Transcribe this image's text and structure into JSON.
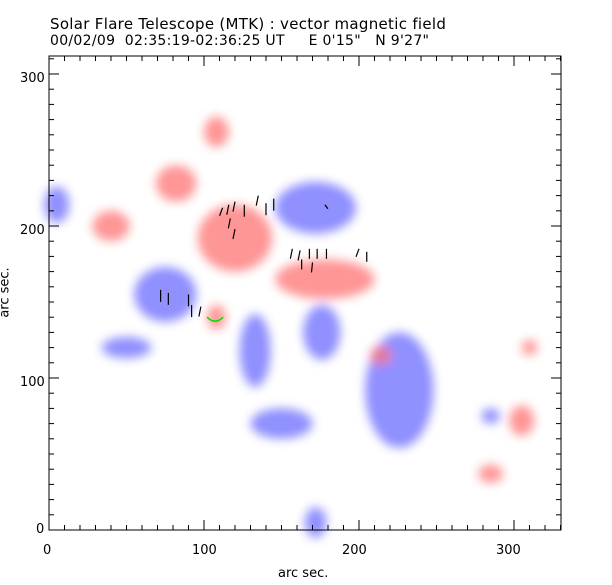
{
  "chart_data": {
    "type": "heatmap",
    "title": "Solar Flare Telescope (MTK) : vector magnetic field",
    "subtitle": "00/02/09  02:35:19-02:36:25 UT     E 0'15\"   N 9'27\"",
    "xlabel": "arc sec.",
    "ylabel": "arc sec.",
    "xlim": [
      0,
      330
    ],
    "ylim": [
      0,
      315
    ],
    "xticks": [
      "0",
      "100",
      "200",
      "300"
    ],
    "yticks": [
      "0",
      "100",
      "200",
      "300"
    ],
    "colors": {
      "positive": "#ff5a5a",
      "negative": "#5a5aff",
      "vectors": "#000000",
      "neutral_line": "#00e000"
    },
    "regions": [
      {
        "polarity": "negative",
        "x": 172,
        "y": 212,
        "rx": 26,
        "ry": 17
      },
      {
        "polarity": "negative",
        "x": 75,
        "y": 155,
        "rx": 20,
        "ry": 18
      },
      {
        "polarity": "negative",
        "x": 226,
        "y": 92,
        "rx": 22,
        "ry": 38
      },
      {
        "polarity": "negative",
        "x": 176,
        "y": 130,
        "rx": 12,
        "ry": 18
      },
      {
        "polarity": "negative",
        "x": 133,
        "y": 118,
        "rx": 10,
        "ry": 24
      },
      {
        "polarity": "negative",
        "x": 5,
        "y": 214,
        "rx": 8,
        "ry": 12
      },
      {
        "polarity": "negative",
        "x": 50,
        "y": 120,
        "rx": 16,
        "ry": 7
      },
      {
        "polarity": "negative",
        "x": 150,
        "y": 70,
        "rx": 20,
        "ry": 10
      },
      {
        "polarity": "negative",
        "x": 285,
        "y": 75,
        "rx": 6,
        "ry": 5
      },
      {
        "polarity": "negative",
        "x": 172,
        "y": 5,
        "rx": 7,
        "ry": 10
      },
      {
        "polarity": "positive",
        "x": 120,
        "y": 192,
        "rx": 24,
        "ry": 22
      },
      {
        "polarity": "positive",
        "x": 178,
        "y": 165,
        "rx": 32,
        "ry": 13
      },
      {
        "polarity": "positive",
        "x": 82,
        "y": 228,
        "rx": 13,
        "ry": 12
      },
      {
        "polarity": "positive",
        "x": 40,
        "y": 200,
        "rx": 12,
        "ry": 10
      },
      {
        "polarity": "positive",
        "x": 108,
        "y": 262,
        "rx": 8,
        "ry": 10
      },
      {
        "polarity": "positive",
        "x": 108,
        "y": 140,
        "rx": 6,
        "ry": 8
      },
      {
        "polarity": "positive",
        "x": 214,
        "y": 115,
        "rx": 7,
        "ry": 6
      },
      {
        "polarity": "positive",
        "x": 305,
        "y": 72,
        "rx": 8,
        "ry": 10
      },
      {
        "polarity": "positive",
        "x": 285,
        "y": 37,
        "rx": 8,
        "ry": 6
      },
      {
        "polarity": "positive",
        "x": 310,
        "y": 120,
        "rx": 5,
        "ry": 5
      }
    ],
    "vectors": [
      [
        112,
        212,
        -3,
        4
      ],
      [
        116,
        214,
        -2,
        5
      ],
      [
        120,
        216,
        -2,
        5
      ],
      [
        126,
        214,
        0,
        6
      ],
      [
        117,
        205,
        -2,
        5
      ],
      [
        120,
        198,
        -2,
        5
      ],
      [
        140,
        215,
        0,
        6
      ],
      [
        145,
        218,
        0,
        6
      ],
      [
        135,
        220,
        -2,
        5
      ],
      [
        157,
        185,
        -2,
        5
      ],
      [
        162,
        184,
        -2,
        5
      ],
      [
        168,
        185,
        0,
        5
      ],
      [
        173,
        185,
        0,
        5
      ],
      [
        179,
        185,
        0,
        5
      ],
      [
        163,
        178,
        0,
        5
      ],
      [
        170,
        176,
        -1,
        5
      ],
      [
        200,
        185,
        -3,
        4
      ],
      [
        205,
        183,
        0,
        5
      ],
      [
        72,
        158,
        0,
        6
      ],
      [
        77,
        156,
        0,
        6
      ],
      [
        90,
        155,
        0,
        6
      ],
      [
        92,
        148,
        0,
        6
      ],
      [
        98,
        147,
        -2,
        5
      ],
      [
        178,
        214,
        3,
        2
      ]
    ]
  }
}
